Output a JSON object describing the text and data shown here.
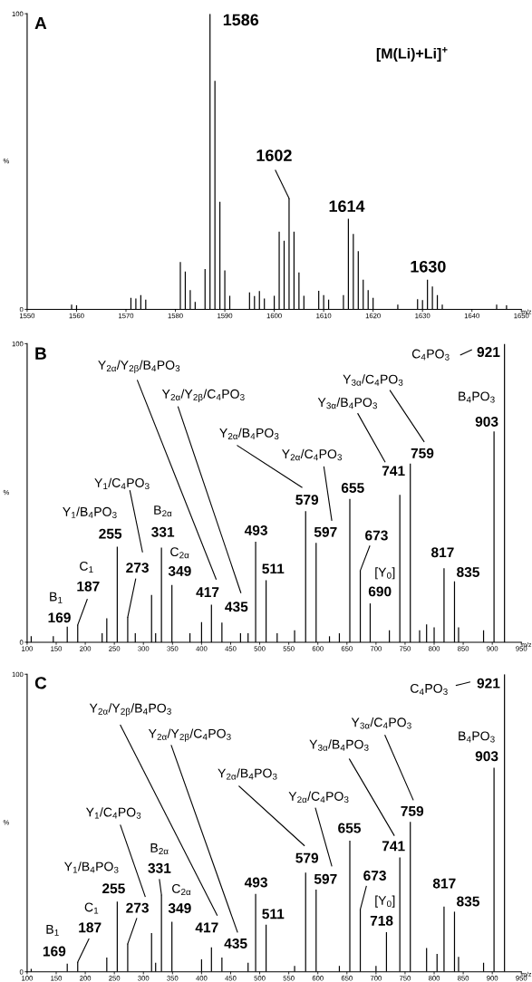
{
  "chart_data": [
    {
      "type": "bar",
      "xlabel": "m/z",
      "color": "#000000",
      "xlim": [
        1550,
        1650
      ],
      "xticks": [
        1550,
        1560,
        1570,
        1580,
        1590,
        1600,
        1610,
        1620,
        1630,
        1640,
        1650
      ],
      "ylim": [
        0,
        100
      ],
      "yticks": [
        0,
        100
      ],
      "ylabel": "%",
      "x": [
        1559,
        1560,
        1571,
        1572,
        1573,
        1574,
        1581,
        1582,
        1583,
        1584,
        1586,
        1587,
        1588,
        1589,
        1590,
        1591,
        1595,
        1596,
        1597,
        1598,
        1600,
        1601,
        1602,
        1603,
        1604,
        1605,
        1606,
        1609,
        1610,
        1611,
        1614,
        1615,
        1616,
        1617,
        1618,
        1619,
        1620,
        1625,
        1629,
        1630,
        1631,
        1632,
        1633,
        1634,
        1645,
        1647
      ],
      "values": [
        1.6,
        1.4,
        3.9,
        3.7,
        4.8,
        3.3,
        16,
        12.8,
        6.5,
        2.5,
        13.6,
        100,
        77.3,
        36.4,
        13.2,
        4.6,
        5.7,
        4.5,
        6.2,
        3.7,
        4.6,
        26.3,
        23.2,
        37.5,
        26.3,
        12.5,
        4.6,
        6.3,
        4.8,
        3.3,
        4.8,
        30.6,
        25.5,
        19.7,
        10,
        6.5,
        3.9,
        1.6,
        3.4,
        3.1,
        10,
        7.7,
        4.8,
        1.6,
        1.6,
        1.4
      ],
      "annotations": [
        "A",
        "1586",
        "[M(Li)+Li]$^{+}$",
        {
          "text": "1602",
          "x": 1603,
          "y": 37.5
        },
        "1614",
        "1630"
      ]
    },
    {
      "type": "bar",
      "xlabel": "m/z",
      "color": "#000000",
      "xlim": [
        100,
        950
      ],
      "xticks": [
        100,
        150,
        200,
        250,
        300,
        350,
        400,
        450,
        500,
        550,
        600,
        650,
        700,
        750,
        800,
        850,
        900,
        950
      ],
      "ylim": [
        0,
        100
      ],
      "yticks": [
        0,
        100
      ],
      "ylabel": "%",
      "x": [
        107,
        145,
        169,
        187,
        229,
        237,
        255,
        273,
        286,
        314,
        321,
        331,
        349,
        380,
        400,
        417,
        435,
        467,
        480,
        493,
        511,
        530,
        560,
        579,
        597,
        620,
        637,
        655,
        673,
        690,
        723,
        741,
        759,
        775,
        787,
        800,
        817,
        835,
        842,
        885,
        903,
        921
      ],
      "values": [
        2,
        2,
        5.2,
        5.8,
        3,
        8,
        32,
        8.4,
        3,
        15.8,
        3,
        31.7,
        19.2,
        3,
        6.7,
        12.6,
        6.6,
        3,
        3,
        33.7,
        20.8,
        3,
        4,
        43.9,
        33.3,
        2,
        3,
        48,
        24,
        13,
        4,
        49.4,
        59.8,
        4,
        6,
        5,
        24.8,
        20.4,
        5,
        4,
        70.6,
        100
      ],
      "annotations": [
        "B",
        "C$_{4}$PO$_{3}$",
        "921",
        "Y$_{2α}$/Y$_{2β}$/B$_{4}$PO$_{3}$",
        "Y$_{2α}$/Y$_{2β}$/C$_{4}$PO$_{3}$",
        "Y$_{3α}$/C$_{4}$PO$_{3}$",
        "Y$_{3α}$/B$_{4}$PO$_{3}$",
        "B$_{4}$PO$_{3}$",
        "903",
        "Y$_{2α}$/B$_{4}$PO$_{3}$",
        "Y$_{2α}$/C$_{4}$PO$_{3}$",
        "759",
        "741",
        "655",
        "579",
        "597",
        {
          "text": "673",
          "x": 673,
          "y": 24
        },
        "[Y$_{0}$]",
        "690",
        "817",
        "835",
        "493",
        "511",
        "Y$_{1}$/C$_{4}$PO$_{3}$",
        "Y$_{1}$/B$_{4}$PO$_{3}$",
        "255",
        "B$_{2α}$",
        "331",
        {
          "text": "273",
          "x": 273,
          "y": 8.4
        },
        "C$_{2α}$",
        "349",
        "417",
        "435",
        "C$_{1}$",
        {
          "text": "187",
          "x": 187,
          "y": 5.8
        },
        "B$_{1}$",
        "169"
      ]
    },
    {
      "type": "bar",
      "xlabel": "m/z",
      "color": "#000000",
      "xlim": [
        100,
        950
      ],
      "xticks": [
        100,
        150,
        200,
        250,
        300,
        350,
        400,
        450,
        500,
        550,
        600,
        650,
        700,
        750,
        800,
        850,
        900,
        950
      ],
      "ylim": [
        0,
        100
      ],
      "yticks": [
        0,
        100
      ],
      "ylabel": "%",
      "x": [
        107,
        169,
        187,
        237,
        255,
        273,
        314,
        321,
        331,
        349,
        400,
        417,
        435,
        480,
        493,
        511,
        560,
        579,
        597,
        637,
        655,
        673,
        700,
        718,
        741,
        759,
        787,
        805,
        817,
        835,
        842,
        885,
        903,
        921
      ],
      "values": [
        1,
        2.7,
        3.3,
        4.8,
        23.6,
        9.4,
        13,
        3,
        25.9,
        16.8,
        4.2,
        8.2,
        4.8,
        3,
        26.2,
        15.8,
        2,
        33.3,
        27.6,
        2,
        44.1,
        21,
        2,
        13.3,
        38.4,
        50.4,
        8,
        6,
        21.9,
        20.2,
        5,
        3,
        68.6,
        100
      ],
      "annotations": [
        "C",
        "C$_{4}$PO$_{3}$",
        "921",
        "Y$_{2α}$/Y$_{2β}$/B$_{4}$PO$_{3}$",
        "Y$_{2α}$/Y$_{2β}$/C$_{4}$PO$_{3}$",
        "Y$_{3α}$/C$_{4}$PO$_{3}$",
        "Y$_{3α}$/B$_{4}$PO$_{3}$",
        "B$_{4}$PO$_{3}$",
        "903",
        "Y$_{2α}$/B$_{4}$PO$_{3}$",
        "Y$_{2α}$/C$_{4}$PO$_{3}$",
        "759",
        "741",
        "655",
        "579",
        "597",
        {
          "text": "673",
          "x": 673,
          "y": 21
        },
        "[Y$_{0}$]",
        "718",
        "817",
        "835",
        "493",
        "511",
        "Y$_{1}$/C$_{4}$PO$_{3}$",
        "Y$_{1}$/B$_{4}$PO$_{3}$",
        "255",
        "B$_{2α}$",
        {
          "text": "331",
          "x": 331,
          "y": 25.9
        },
        {
          "text": "273",
          "x": 273,
          "y": 9.4
        },
        "C$_{2α}$",
        "349",
        "417",
        "435",
        "C$_{1}$",
        {
          "text": "187",
          "x": 187,
          "y": 3.3
        },
        "B$_{1}$",
        "169"
      ]
    }
  ]
}
